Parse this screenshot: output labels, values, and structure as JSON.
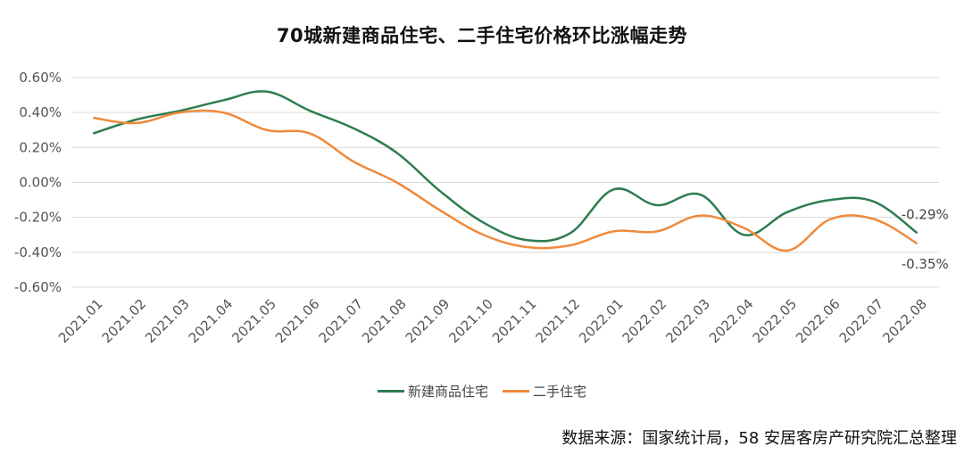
{
  "title": "70城新建商品住宅、二手住宅价格环比涨幅走势",
  "source": "数据来源：国家统计局，58 安居客房产研究院汇总整理",
  "colors": {
    "grid": "#d9d9d9"
  },
  "chart_data": {
    "type": "line",
    "categories": [
      "2021.01",
      "2021.02",
      "2021.03",
      "2021.04",
      "2021.05",
      "2021.06",
      "2021.07",
      "2021.08",
      "2021.09",
      "2021.10",
      "2021.11",
      "2021.12",
      "2022.01",
      "2022.02",
      "2022.03",
      "2022.04",
      "2022.05",
      "2022.06",
      "2022.07",
      "2022.08"
    ],
    "ylim": [
      -0.6,
      0.6
    ],
    "yticks": [
      "0.60%",
      "0.40%",
      "0.20%",
      "0.00%",
      "-0.20%",
      "-0.40%",
      "-0.60%"
    ],
    "series": [
      {
        "name": "新建商品住宅",
        "color": "#2e7d4f",
        "values": [
          0.28,
          0.36,
          0.41,
          0.47,
          0.52,
          0.41,
          0.31,
          0.17,
          -0.05,
          -0.23,
          -0.33,
          -0.29,
          -0.04,
          -0.13,
          -0.07,
          -0.3,
          -0.17,
          -0.1,
          -0.11,
          -0.29
        ],
        "end_label": "-0.29%"
      },
      {
        "name": "二手住宅",
        "color": "#f08a3c",
        "values": [
          0.37,
          0.34,
          0.4,
          0.4,
          0.3,
          0.28,
          0.12,
          0.0,
          -0.16,
          -0.3,
          -0.37,
          -0.36,
          -0.28,
          -0.28,
          -0.19,
          -0.26,
          -0.39,
          -0.21,
          -0.21,
          -0.35
        ],
        "end_label": "-0.35%"
      }
    ]
  }
}
